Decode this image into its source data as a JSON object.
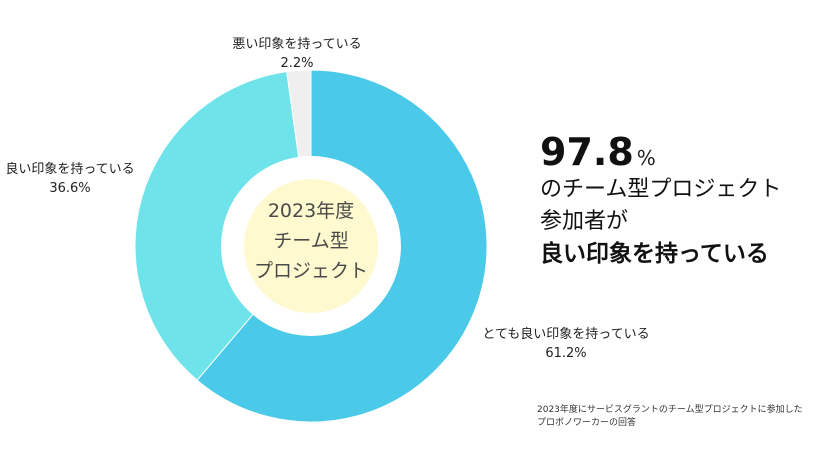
{
  "chart_data": {
    "type": "pie",
    "variant": "donut",
    "center_label": [
      "2023年度",
      "チーム型",
      "プロジェクト"
    ],
    "slices": [
      {
        "label": "とても良い印象を持っている",
        "value": 61.2,
        "display": "61.2%",
        "color": "#4bc9e9"
      },
      {
        "label": "良い印象を持っている",
        "value": 36.6,
        "display": "36.6%",
        "color": "#6ee3ea"
      },
      {
        "label": "悪い印象を持っている",
        "value": 2.2,
        "display": "2.2%",
        "color": "#efefef"
      }
    ],
    "center_disc_color": "#fff9d0"
  },
  "headline": {
    "number": "97.8",
    "unit": "%",
    "line1": "のチーム型プロジェクト",
    "line2": "参加者が",
    "line3": "良い印象を持っている"
  },
  "footnote": {
    "line1": "2023年度にサービスグラントのチーム型プロジェクトに参加した",
    "line2": "プロボノワーカーの回答"
  }
}
